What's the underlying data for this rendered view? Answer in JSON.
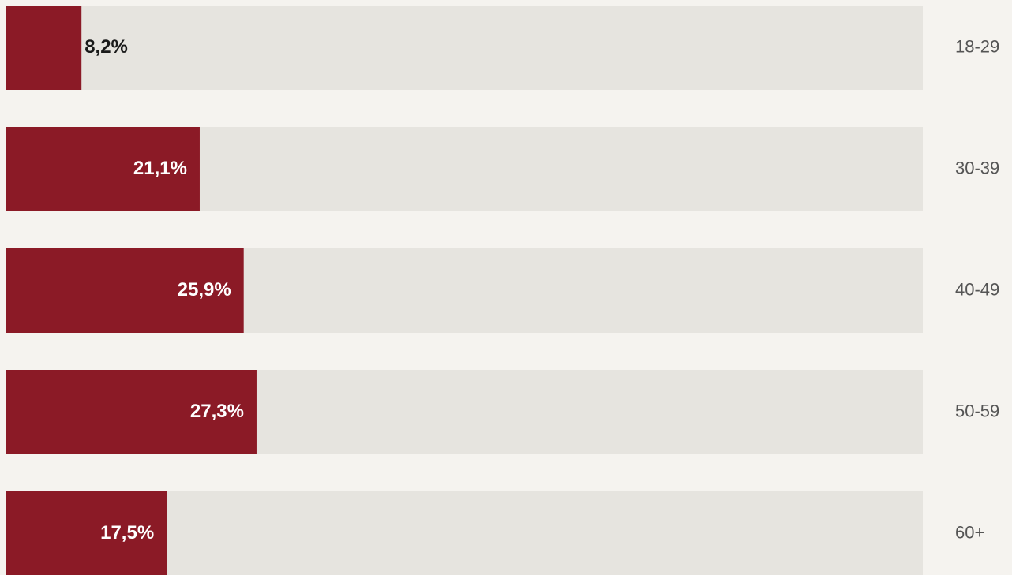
{
  "chart_data": {
    "type": "bar",
    "categories": [
      "18-29",
      "30-39",
      "40-49",
      "50-59",
      "60+"
    ],
    "values": [
      8.2,
      21.1,
      25.9,
      27.3,
      17.5
    ],
    "value_labels": [
      "8,2%",
      "21,1%",
      "25,9%",
      "27,3%",
      "17,5%"
    ],
    "color": "#8b1a26",
    "xlim": [
      0,
      100
    ]
  }
}
